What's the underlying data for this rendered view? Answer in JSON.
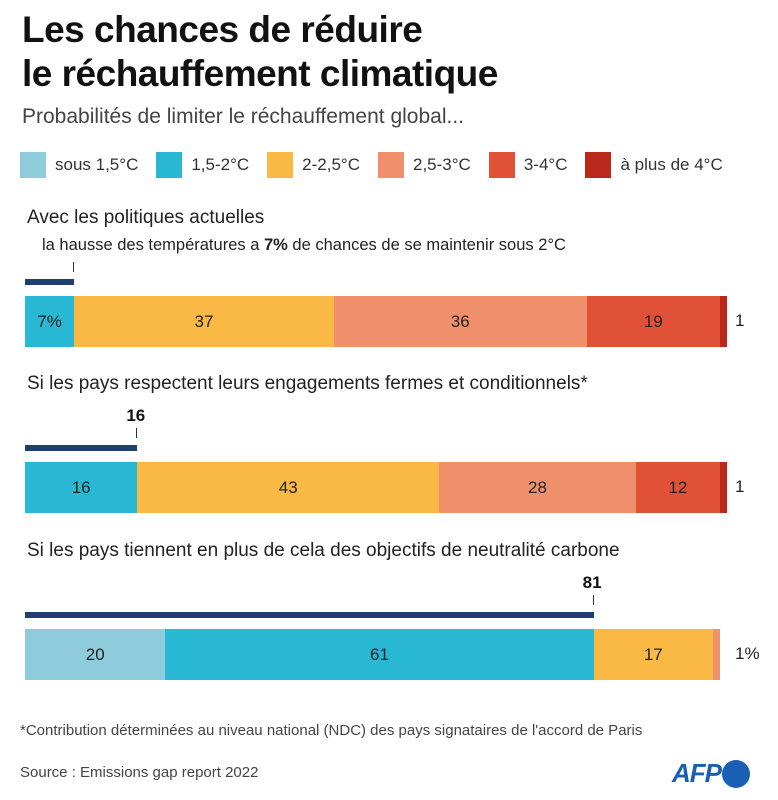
{
  "title_line1": "Les chances de réduire",
  "title_line2": "le réchauffement climatique",
  "subtitle": "Probabilités de limiter le réchauffement global...",
  "colors": {
    "highlight": "#1f3f6e"
  },
  "chart_data": {
    "type": "bar",
    "orientation": "horizontal-stacked",
    "unit": "%",
    "legend_placement": "top",
    "categories_legend": [
      {
        "name": "sous 1,5°C",
        "color": "#8ecbdb"
      },
      {
        "name": "1,5-2°C",
        "color": "#29b8d4"
      },
      {
        "name": "2-2,5°C",
        "color": "#f9b944"
      },
      {
        "name": "2,5-3°C",
        "color": "#f08f6c"
      },
      {
        "name": "3-4°C",
        "color": "#e05138"
      },
      {
        "name": "à plus de 4°C",
        "color": "#b9281b"
      }
    ],
    "scenarios": [
      {
        "title": "Avec les politiques actuelles",
        "note_pre": "la hausse des températures a ",
        "note_bold": "7%",
        "note_post": " de chances de se maintenir sous 2°C",
        "highlight_value": 7,
        "highlight_label": "",
        "values": [
          0,
          7,
          37,
          36,
          19,
          1
        ],
        "labels": [
          "",
          "7%",
          "37",
          "36",
          "19",
          "1"
        ]
      },
      {
        "title": "Si les pays respectent leurs engagements fermes et conditionnels*",
        "highlight_value": 16,
        "highlight_label": "16",
        "values": [
          0,
          16,
          43,
          28,
          12,
          1
        ],
        "labels": [
          "",
          "16",
          "43",
          "28",
          "12",
          "1"
        ]
      },
      {
        "title": "Si les pays tiennent en plus de cela des objectifs de neutralité carbone",
        "highlight_value": 81,
        "highlight_label": "81",
        "values": [
          20,
          61,
          17,
          1,
          0,
          0
        ],
        "labels": [
          "20",
          "61",
          "17",
          "1%",
          "",
          ""
        ]
      }
    ]
  },
  "footnote": "*Contribution déterminées au niveau national (NDC) des pays signataires de l'accord de Paris",
  "source": "Source : Emissions gap report 2022",
  "logo": "AFP"
}
